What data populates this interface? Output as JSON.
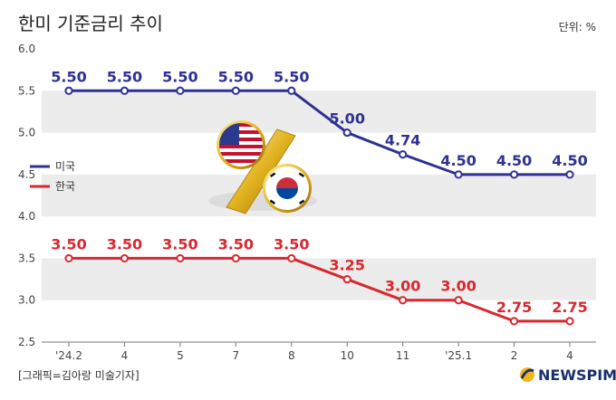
{
  "header": {
    "title": "한미 기준금리 추이",
    "unit": "단위: %"
  },
  "footer": {
    "credit": "[그래픽=김아랑 미술기자]",
    "brand": "NEWSPIM"
  },
  "colors": {
    "us": "#2e3192",
    "kr": "#d7282f",
    "band": "#ececec"
  },
  "chart_data": {
    "type": "line",
    "title": "한미 기준금리 추이",
    "unit": "단위: %",
    "categories": [
      "'24.2",
      "4",
      "5",
      "7",
      "8",
      "10",
      "11",
      "'25.1",
      "2",
      "4"
    ],
    "yticks": [
      "6.0",
      "5.5",
      "5.0",
      "4.5",
      "4.0",
      "3.5",
      "3.0",
      "2.5"
    ],
    "ylim": [
      2.5,
      6.0
    ],
    "legend_position": "left",
    "series": [
      {
        "name": "미국",
        "color": "#2e3192",
        "values": [
          5.5,
          5.5,
          5.5,
          5.5,
          5.5,
          5.0,
          4.74,
          4.5,
          4.5,
          4.5
        ],
        "labels": [
          "5.50",
          "5.50",
          "5.50",
          "5.50",
          "5.50",
          "5.00",
          "4.74",
          "4.50",
          "4.50",
          "4.50"
        ]
      },
      {
        "name": "한국",
        "color": "#d7282f",
        "values": [
          3.5,
          3.5,
          3.5,
          3.5,
          3.5,
          3.25,
          3.0,
          3.0,
          2.75,
          2.75
        ],
        "labels": [
          "3.50",
          "3.50",
          "3.50",
          "3.50",
          "3.50",
          "3.25",
          "3.00",
          "3.00",
          "2.75",
          "2.75"
        ]
      }
    ]
  }
}
